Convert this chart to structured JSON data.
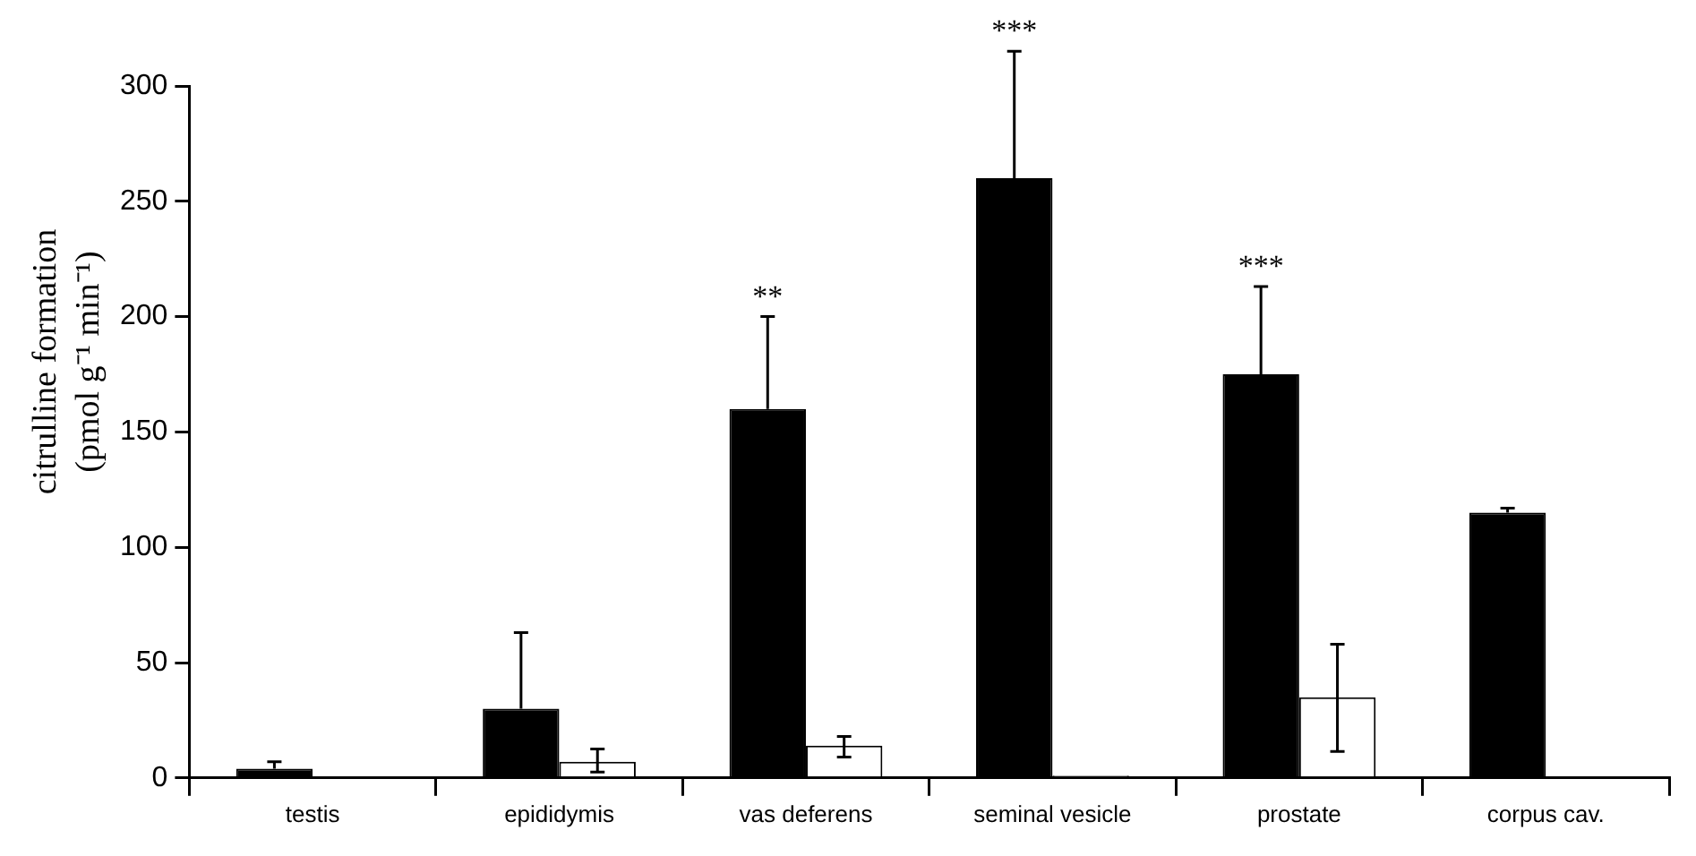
{
  "chart_data": {
    "type": "bar",
    "ylabel": "citrulline formation (pmol g⁻¹ min⁻¹)",
    "categories": [
      "testis",
      "epididymis",
      "vas deferens",
      "seminal vesicle",
      "prostate",
      "corpus cav."
    ],
    "series": [
      {
        "color": "#000000",
        "values": [
          4,
          30,
          160,
          260,
          175,
          115
        ],
        "errors": [
          [
            4,
            7
          ],
          [
            30,
            63
          ],
          [
            160,
            200
          ],
          [
            260,
            315
          ],
          [
            175,
            213
          ],
          [
            115,
            117
          ]
        ]
      },
      {
        "color": "#ffffff",
        "values": [
          null,
          7,
          14,
          1,
          35,
          null
        ],
        "errors": [
          null,
          [
            2.5,
            12.5
          ],
          [
            9,
            18
          ],
          null,
          [
            11.5,
            58
          ],
          null
        ]
      }
    ],
    "ylim": [
      0,
      300
    ],
    "yticks": [
      0,
      50,
      100,
      150,
      200,
      250,
      300
    ],
    "grid": false,
    "legend": false,
    "annotations": [
      "**",
      "***",
      "***"
    ]
  }
}
